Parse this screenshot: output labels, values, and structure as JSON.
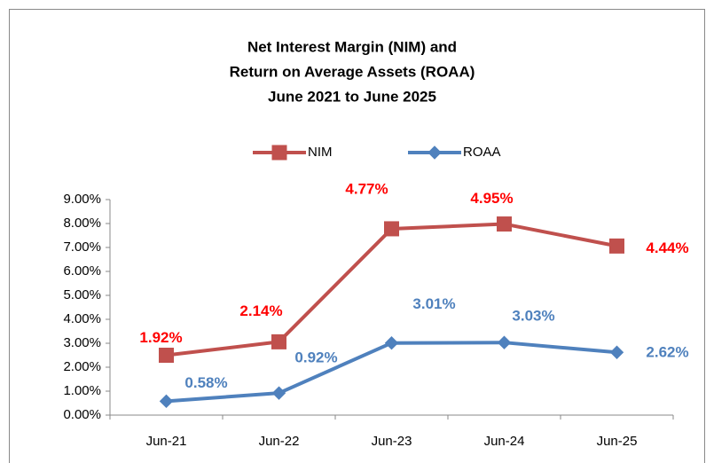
{
  "chart_data": {
    "type": "line",
    "stacked": true,
    "title": [
      "Net Interest Margin (NIM) and",
      "Return on Average Assets (ROAA)",
      "June 2021 to June 2025"
    ],
    "categories": [
      "Jun-21",
      "Jun-22",
      "Jun-23",
      "Jun-24",
      "Jun-25"
    ],
    "series": [
      {
        "name": "ROAA",
        "color": "#4f81bd",
        "label_color": "#4f81bd",
        "marker": "diamond",
        "values": [
          0.58,
          0.92,
          3.01,
          3.03,
          2.62
        ],
        "value_labels": [
          "0.58%",
          "0.92%",
          "3.01%",
          "3.03%",
          "2.62%"
        ]
      },
      {
        "name": "NIM",
        "color": "#c0504d",
        "label_color": "#ff0000",
        "marker": "square",
        "values": [
          1.92,
          2.14,
          4.77,
          4.95,
          4.44
        ],
        "value_labels": [
          "1.92%",
          "2.14%",
          "4.77%",
          "4.95%",
          "4.44%"
        ]
      }
    ],
    "ylim": [
      0,
      9
    ],
    "yticks": [
      {
        "value": 0,
        "label": "0.00%"
      },
      {
        "value": 1,
        "label": "1.00%"
      },
      {
        "value": 2,
        "label": "2.00%"
      },
      {
        "value": 3,
        "label": "3.00%"
      },
      {
        "value": 4,
        "label": "4.00%"
      },
      {
        "value": 5,
        "label": "5.00%"
      },
      {
        "value": 6,
        "label": "6.00%"
      },
      {
        "value": 7,
        "label": "7.00%"
      },
      {
        "value": 8,
        "label": "8.00%"
      },
      {
        "value": 9,
        "label": "9.00%"
      }
    ],
    "grid": false
  }
}
